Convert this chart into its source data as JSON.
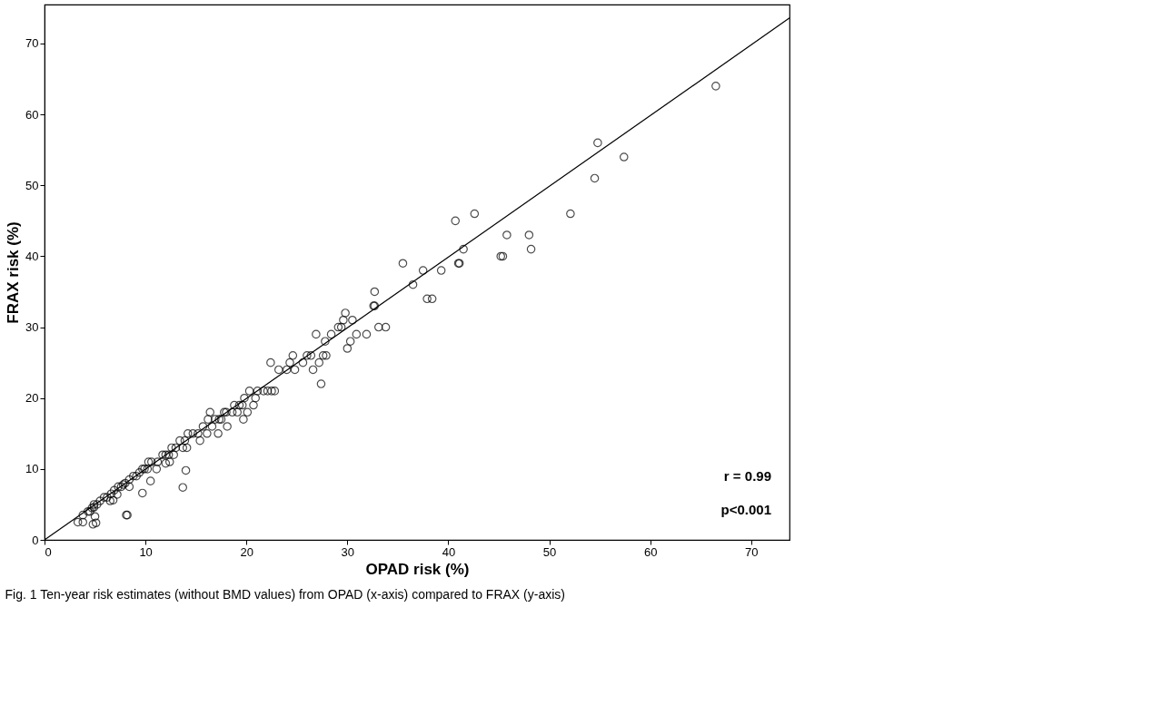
{
  "chart_data": {
    "type": "scatter",
    "xlabel": "OPAD risk (%)",
    "ylabel": "FRAX risk (%)",
    "xlim": [
      0,
      73.8
    ],
    "ylim": [
      0,
      75.5
    ],
    "xticks": [
      0,
      10,
      20,
      30,
      40,
      50,
      60,
      70
    ],
    "yticks": [
      0,
      10,
      20,
      30,
      40,
      50,
      60,
      70
    ],
    "annotations": [
      "r = 0.99",
      "p<0.001",
      "Fig. 1 Ten-year risk estimates (without BMD values) from OPAD (x-axis) compared to FRAX (y-axis)"
    ],
    "series": [
      {
        "color": "#000000",
        "marker": "circle",
        "x": [
          66.5,
          54.8,
          57.4,
          54.5,
          52.1,
          42.6,
          40.7,
          45.8,
          48.0,
          48.2,
          41.5,
          45.2,
          45.4,
          41.1,
          41.0,
          35.5,
          37.5,
          39.3,
          36.5,
          37.9,
          38.4,
          33.8,
          33.1,
          32.7,
          32.7,
          32.6,
          31.9,
          30.9,
          30.5,
          29.8,
          29.6,
          29.4,
          29.1,
          30.3,
          30.0,
          28.4,
          27.8,
          27.6,
          27.9,
          26.9,
          26.4,
          27.2,
          27.4,
          26.6,
          25.6,
          26.0,
          24.6,
          24.8,
          24.3,
          22.4,
          24.0,
          23.2,
          22.8,
          22.5,
          22.1,
          21.7,
          21.1,
          20.9,
          20.3,
          20.7,
          19.8,
          19.6,
          19.3,
          19.7,
          18.8,
          20.1,
          19.1,
          18.6,
          18.0,
          17.8,
          17.5,
          17.3,
          16.9,
          18.1,
          16.4,
          16.2,
          15.7,
          16.6,
          17.2,
          16.1,
          15.2,
          15.4,
          14.7,
          14.2,
          13.9,
          13.4,
          13.0,
          13.7,
          14.1,
          12.6,
          12.3,
          12.0,
          11.7,
          12.8,
          12.4,
          11.2,
          10.6,
          10.3,
          10.2,
          9.9,
          9.7,
          9.4,
          9.1,
          8.8,
          8.4,
          8.0,
          7.6,
          7.3,
          6.9,
          6.6,
          6.2,
          5.9,
          5.5,
          5.2,
          4.9,
          4.7,
          4.5,
          4.3,
          3.8,
          3.3,
          3.8,
          4.8,
          5.1,
          5.0,
          4.9,
          8.1,
          8.2,
          9.7,
          10.5,
          8.4,
          7.8,
          6.8,
          6.5,
          7.2,
          11.1,
          12.0,
          13.7,
          14.0
        ],
        "values": [
          64,
          56,
          54,
          51,
          46,
          46,
          45,
          43,
          43,
          41,
          41,
          40,
          40,
          39,
          39,
          39,
          38,
          38,
          36,
          34,
          34,
          30,
          30,
          35,
          33,
          33,
          29,
          29,
          31,
          32,
          31,
          30,
          30,
          28,
          27,
          29,
          28,
          26,
          26,
          29,
          26,
          25,
          22,
          24,
          25,
          26,
          26,
          24,
          25,
          25,
          24,
          24,
          21,
          21,
          21,
          21,
          21,
          20,
          21,
          19,
          20,
          19,
          19,
          17,
          19,
          18,
          18,
          18,
          18,
          18,
          17,
          17,
          17,
          16,
          18,
          17,
          16,
          16,
          15,
          15,
          15,
          14,
          15,
          15,
          14,
          14,
          13,
          13,
          13,
          13,
          12,
          12,
          12,
          12,
          11,
          11,
          11,
          11,
          10,
          10,
          10,
          9.5,
          9,
          9,
          8.5,
          8,
          7.5,
          7.5,
          7,
          6.5,
          6,
          6,
          5.5,
          5,
          5,
          4.5,
          4,
          4,
          3.5,
          2.5,
          2.5,
          2.2,
          2.4,
          3.3,
          4.6,
          3.5,
          3.5,
          6.6,
          8.3,
          7.5,
          7.8,
          5.6,
          5.5,
          6.4,
          10,
          10.8,
          7.4,
          9.8
        ]
      },
      {
        "type": "line",
        "color": "#000000",
        "marker": "none",
        "line_style": "solid",
        "x": [
          0,
          73.8
        ],
        "values": [
          0,
          73.6
        ]
      }
    ]
  }
}
